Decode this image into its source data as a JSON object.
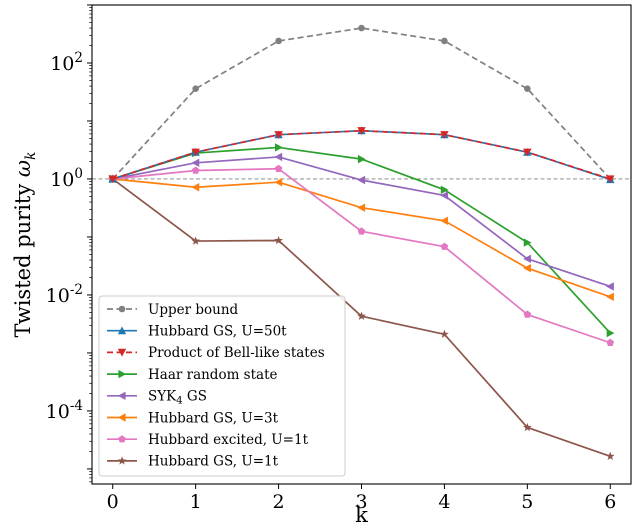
{
  "chart_data": {
    "type": "line",
    "title": "",
    "xlabel": "k",
    "ylabel": "Twisted purity",
    "ylabel_symbol": "ω",
    "ylabel_subscript": "k",
    "yscale": "log",
    "xlim": [
      -0.25,
      6.25
    ],
    "ylim": [
      5.5e-06,
      1000
    ],
    "x": [
      0,
      1,
      2,
      3,
      4,
      5,
      6
    ],
    "x_ticks": [
      "0",
      "1",
      "2",
      "3",
      "4",
      "5",
      "6"
    ],
    "y_ticks": [
      {
        "value": 100,
        "base": "10",
        "exp": "2"
      },
      {
        "value": 1,
        "base": "10",
        "exp": "0"
      },
      {
        "value": 0.01,
        "base": "10",
        "exp": "-2"
      },
      {
        "value": 0.0001,
        "base": "10",
        "exp": "-4"
      }
    ],
    "reference_line": {
      "y": 1,
      "style": "dashed",
      "color": "#808080"
    },
    "legend_position": "lower-left",
    "series": [
      {
        "name": "Upper bound",
        "color": "#808080",
        "dash": "dashed",
        "marker": "circle",
        "values": [
          1,
          36,
          240,
          400,
          240,
          36,
          1
        ]
      },
      {
        "name": "Hubbard GS, U=50t",
        "color": "#1f77b4",
        "dash": "solid",
        "marker": "triangle-up",
        "values": [
          1,
          2.9,
          5.8,
          6.8,
          5.8,
          2.9,
          0.98
        ]
      },
      {
        "name": "Product of Bell-like states",
        "color": "#d62728",
        "dash": "dashed",
        "marker": "triangle-down",
        "values": [
          1,
          2.9,
          5.8,
          6.8,
          5.8,
          2.9,
          1.0
        ]
      },
      {
        "name": "Haar random state",
        "color": "#2ca02c",
        "dash": "solid",
        "marker": "triangle-right",
        "values": [
          1,
          2.8,
          3.5,
          2.2,
          0.65,
          0.08,
          0.0022
        ]
      },
      {
        "name": "SYK",
        "name_sub": "4",
        "name_suffix": " GS",
        "color": "#9467bd",
        "dash": "solid",
        "marker": "triangle-left",
        "values": [
          1,
          1.9,
          2.4,
          0.96,
          0.52,
          0.042,
          0.014
        ]
      },
      {
        "name": "Hubbard GS, U=3t",
        "color": "#ff7f0e",
        "dash": "solid",
        "marker": "triangle-left",
        "values": [
          1,
          0.72,
          0.88,
          0.32,
          0.19,
          0.029,
          0.0093
        ]
      },
      {
        "name": "Hubbard excited, U=1t",
        "color": "#e377c2",
        "dash": "solid",
        "marker": "pentagon",
        "values": [
          1,
          1.4,
          1.5,
          0.125,
          0.068,
          0.0046,
          0.0015
        ]
      },
      {
        "name": "Hubbard GS, U=1t",
        "color": "#8c564b",
        "dash": "solid",
        "marker": "star",
        "values": [
          1,
          0.085,
          0.087,
          0.0043,
          0.0021,
          5.2e-05,
          1.65e-05
        ]
      }
    ]
  }
}
